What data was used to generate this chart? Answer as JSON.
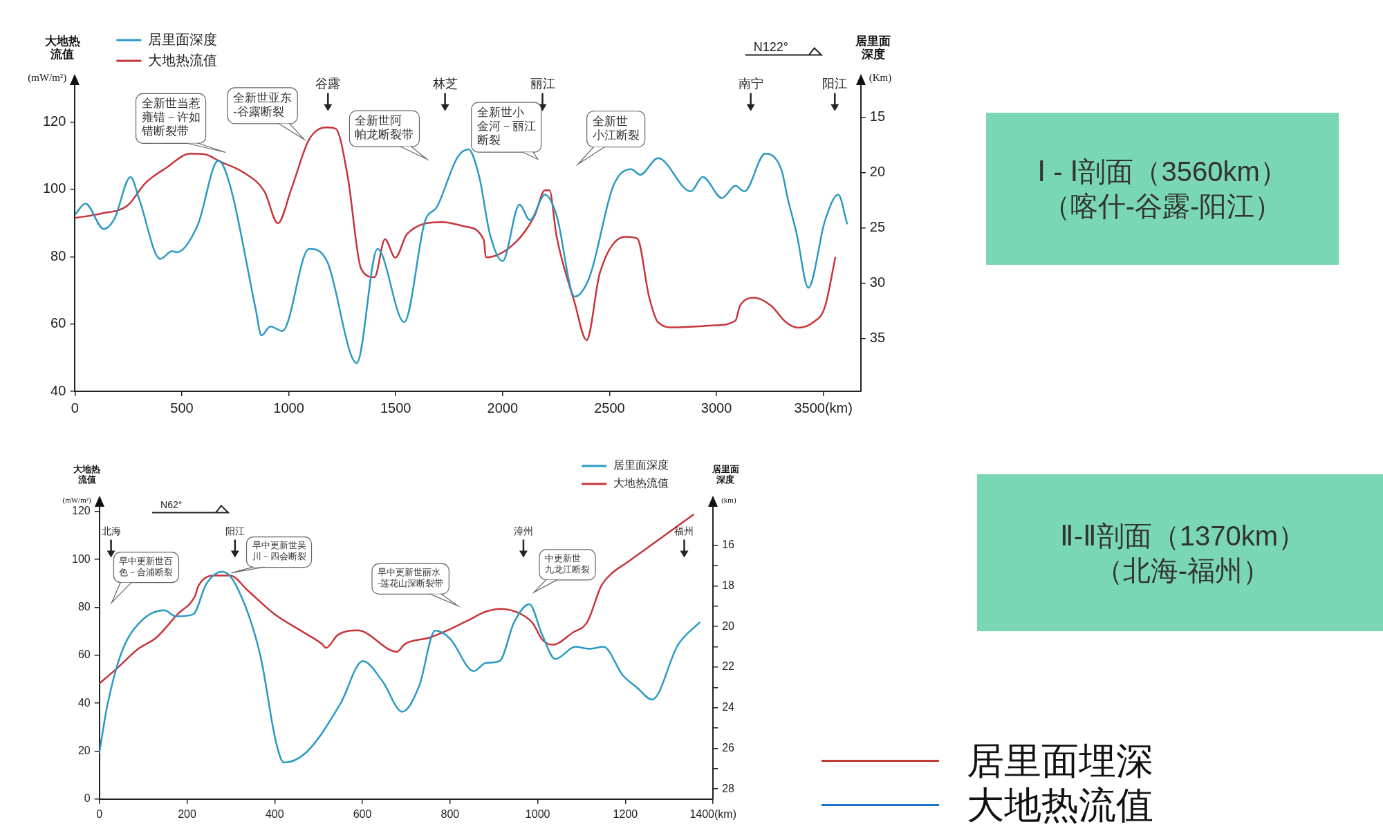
{
  "chart_data": [
    {
      "type": "line",
      "ylabel": "大地热流值(mW/m²)",
      "y2label": "居里面深度(Km)",
      "legend": "top left",
      "xlim": [
        0,
        3675
      ],
      "xticks": [
        0,
        500,
        1000,
        1500,
        2000,
        2500,
        3000,
        {
          "value": 3500,
          "label": "3500(km)"
        }
      ],
      "ylim": [
        40,
        131
      ],
      "yticks": [
        40,
        60,
        80,
        100,
        120
      ],
      "y2lim": [
        39.75,
        12.1
      ],
      "y2ticks": [
        15,
        20,
        25,
        30,
        35
      ],
      "series": [
        {
          "name": "居里面深度",
          "color": "#2a9ac4",
          "axis": "y2",
          "x": [
            0,
            49,
            135,
            184,
            260,
            302,
            399,
            455,
            476,
            573,
            671,
            726,
            845,
            872,
            914,
            970,
            1095,
            1179,
            1318,
            1415,
            1540,
            1637,
            1693,
            1790,
            1840,
            1891,
            1940,
            2000,
            2079,
            2128,
            2198,
            2253,
            2337,
            2407,
            2518,
            2602,
            2643,
            2727,
            2880,
            2936,
            3026,
            3089,
            3131,
            3228,
            3305,
            3333,
            3375,
            3430,
            3507,
            3570,
            3611
          ],
          "values": [
            23.8,
            22.8,
            25.1,
            24.2,
            20.4,
            22.5,
            27.8,
            27.1,
            27.2,
            24.8,
            18.9,
            21.2,
            32.3,
            34.7,
            33.9,
            34.3,
            26.9,
            28,
            37.2,
            26.9,
            33.5,
            24.4,
            23.1,
            18.6,
            17.9,
            20.4,
            25.5,
            28,
            22.9,
            24.3,
            22,
            23.9,
            31.2,
            29.4,
            21.2,
            19.7,
            20.2,
            18.7,
            21.7,
            20.4,
            22.3,
            21.2,
            21.7,
            18.3,
            19.8,
            22.3,
            25.5,
            30.4,
            24.4,
            22,
            24.6
          ]
        },
        {
          "name": "大地热流值",
          "color": "#c7353a",
          "axis": "y",
          "x": [
            0,
            121,
            246,
            330,
            427,
            539,
            608,
            678,
            789,
            887,
            949,
            1012,
            1095,
            1179,
            1220,
            1276,
            1338,
            1401,
            1450,
            1498,
            1554,
            1721,
            1822,
            1912,
            1922,
            2058,
            2149,
            2198,
            2219,
            2253,
            2337,
            2393,
            2455,
            2574,
            2630,
            2685,
            2727,
            2797,
            2992,
            3089,
            3110,
            3180,
            3256,
            3326,
            3382,
            3452,
            3507,
            3556
          ],
          "values": [
            91.5,
            92.8,
            95.2,
            101.9,
            106.4,
            110.6,
            110.4,
            108.3,
            105,
            99.3,
            89.9,
            100.1,
            114.8,
            118.4,
            118,
            103.7,
            76.5,
            73.9,
            85.2,
            79.7,
            86.8,
            90.3,
            89,
            85,
            79.8,
            84.1,
            92.1,
            99.7,
            99.7,
            85.9,
            66.3,
            55.2,
            75.2,
            85.9,
            85.4,
            68.1,
            60.5,
            59,
            59.6,
            61,
            65.4,
            67.8,
            65.4,
            60.5,
            58.9,
            60.5,
            65,
            79.7
          ]
        }
      ],
      "annotations": [
        "N122°",
        "谷露",
        "林芝",
        "丽江",
        "南宁",
        "阳江",
        "全新世当惹雍错－许如错断裂带",
        "全新世亚东-谷露断裂",
        "全新世阿帕龙断裂带",
        "全新世小金河－丽江断裂",
        "全新世小江断裂"
      ]
    },
    {
      "type": "other",
      "annotations": [
        "Ⅰ - Ⅰ剖面（3560km）",
        "（喀什-谷露-阳江）"
      ]
    },
    {
      "type": "line",
      "ylabel": "大地热流值(mW/m²)",
      "y2label": "居里面深度(km)",
      "legend": "top right",
      "xlim": [
        0,
        1400
      ],
      "xticks": [
        0,
        200,
        400,
        600,
        800,
        1000,
        1200,
        {
          "value": 1400,
          "label": "1400(km)"
        }
      ],
      "ylim": [
        0,
        122
      ],
      "yticks": [
        0,
        20,
        40,
        60,
        80,
        100,
        120
      ],
      "y2lim": [
        28.5,
        14.1
      ],
      "y2ticks": [
        16,
        {
          "value": 17,
          "label": null
        },
        18,
        {
          "value": 19,
          "label": null
        },
        20,
        {
          "value": 21,
          "label": null
        },
        22,
        {
          "value": 23,
          "label": null
        },
        24,
        {
          "value": 25,
          "label": null
        },
        26,
        {
          "value": 27,
          "label": null
        },
        28
      ],
      "series": [
        {
          "name": "居里面深度",
          "color": "#2a9ac4",
          "axis": "y2",
          "x": [
            0,
            19,
            52,
            97,
            148,
            175,
            214,
            244,
            280,
            310,
            367,
            403,
            421,
            472,
            550,
            601,
            646,
            691,
            730,
            766,
            800,
            854,
            881,
            913,
            946,
            981,
            1010,
            1040,
            1086,
            1118,
            1150,
            1194,
            1226,
            1261,
            1320,
            1369
          ],
          "values": [
            26.2,
            23.8,
            21.2,
            19.7,
            19.2,
            19.5,
            19.4,
            17.9,
            17.3,
            17.9,
            21.4,
            25.7,
            26.7,
            26.2,
            23.8,
            21.7,
            22.7,
            24.2,
            22.9,
            20.2,
            20.6,
            22.2,
            21.8,
            21.7,
            19.8,
            18.9,
            20.4,
            21.6,
            21,
            21.1,
            21,
            22.4,
            23,
            23.6,
            20.9,
            19.8
          ]
        },
        {
          "name": "大地热流值",
          "color": "#c7353a",
          "axis": "y",
          "x": [
            0,
            40,
            88,
            130,
            178,
            218,
            226,
            262,
            298,
            340,
            400,
            466,
            508,
            517,
            544,
            589,
            679,
            697,
            753,
            800,
            849,
            881,
            916,
            962,
            989,
            1010,
            1034,
            1080,
            1113,
            1145,
            1167,
            1204,
            1355
          ],
          "values": [
            48.2,
            54.5,
            62.6,
            67.4,
            77.1,
            84.7,
            89,
            93.3,
            93.3,
            86.8,
            77.1,
            69.6,
            64.7,
            63.1,
            68.5,
            70.4,
            61.5,
            64.7,
            67.4,
            70.9,
            75.3,
            78.2,
            79.4,
            77.2,
            73.3,
            66.6,
            64.4,
            69.5,
            73.9,
            89,
            93.9,
            98.8,
            118.7
          ]
        }
      ],
      "annotations": [
        "N62°",
        "北海",
        "阳江",
        "漳州",
        "福州",
        "早中更新世百色－合浦断裂",
        "早中更新世吴川－四会断裂",
        "早中更新世丽水-莲花山深断裂带",
        "中更新世九龙江断裂"
      ]
    },
    {
      "type": "other",
      "annotations": [
        "Ⅱ-Ⅱ剖面（1370km）",
        "（北海-福州）"
      ]
    },
    {
      "type": "other",
      "annotations": [
        "居里面埋深",
        "大地热流值"
      ]
    }
  ]
}
